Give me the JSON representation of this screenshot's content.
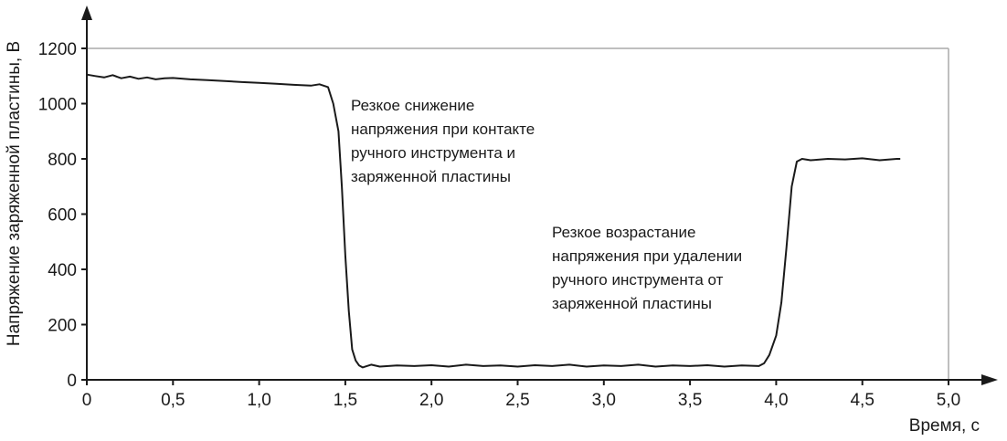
{
  "chart_data": {
    "type": "line",
    "title": "",
    "xlabel": "Время, с",
    "ylabel": "Напряжение заряженной пластины, В",
    "xlim": [
      0,
      5.0
    ],
    "ylim": [
      0,
      1200
    ],
    "x_ticks": [
      "0",
      "0,5",
      "1,0",
      "1,5",
      "2,0",
      "2,5",
      "3,0",
      "3,5",
      "4,0",
      "4,5",
      "5,0"
    ],
    "y_ticks": [
      "0",
      "200",
      "400",
      "600",
      "800",
      "1000",
      "1200"
    ],
    "grid": false,
    "legend": "none",
    "series": [
      {
        "x": [
          0,
          0.05,
          0.1,
          0.15,
          0.2,
          0.25,
          0.3,
          0.35,
          0.4,
          0.45,
          0.5,
          0.6,
          0.7,
          0.8,
          0.9,
          1.0,
          1.1,
          1.2,
          1.3,
          1.35,
          1.4,
          1.43,
          1.46,
          1.48,
          1.5,
          1.52,
          1.54,
          1.56,
          1.58,
          1.6,
          1.65,
          1.7,
          1.8,
          1.9,
          2.0,
          2.1,
          2.2,
          2.3,
          2.4,
          2.5,
          2.6,
          2.7,
          2.8,
          2.9,
          3.0,
          3.1,
          3.2,
          3.3,
          3.4,
          3.5,
          3.6,
          3.7,
          3.8,
          3.9,
          3.93,
          3.96,
          4.0,
          4.03,
          4.06,
          4.09,
          4.12,
          4.15,
          4.2,
          4.3,
          4.4,
          4.5,
          4.6,
          4.7,
          4.72
        ],
        "y": [
          1105,
          1100,
          1095,
          1103,
          1092,
          1098,
          1090,
          1095,
          1088,
          1092,
          1093,
          1088,
          1085,
          1082,
          1078,
          1075,
          1072,
          1068,
          1065,
          1070,
          1060,
          1000,
          900,
          700,
          450,
          250,
          110,
          70,
          52,
          45,
          55,
          48,
          52,
          50,
          53,
          48,
          55,
          50,
          52,
          48,
          53,
          50,
          55,
          48,
          52,
          50,
          55,
          48,
          52,
          50,
          53,
          48,
          52,
          50,
          60,
          90,
          160,
          280,
          480,
          700,
          790,
          800,
          795,
          800,
          798,
          802,
          795,
          800,
          800
        ],
        "color": "#1a1a1a"
      }
    ],
    "annotations": [
      {
        "lines": [
          "Резкое снижение",
          "напряжения при контакте",
          "ручного инструмента и",
          "заряженной пластины"
        ]
      },
      {
        "lines": [
          "Резкое возрастание",
          "напряжения при удалении",
          "ручного инструмента от",
          "заряженной пластины"
        ]
      }
    ],
    "colors": {
      "line": "#1a1a1a",
      "axis": "#1a1a1a",
      "frame": "#aaaaaa"
    }
  }
}
